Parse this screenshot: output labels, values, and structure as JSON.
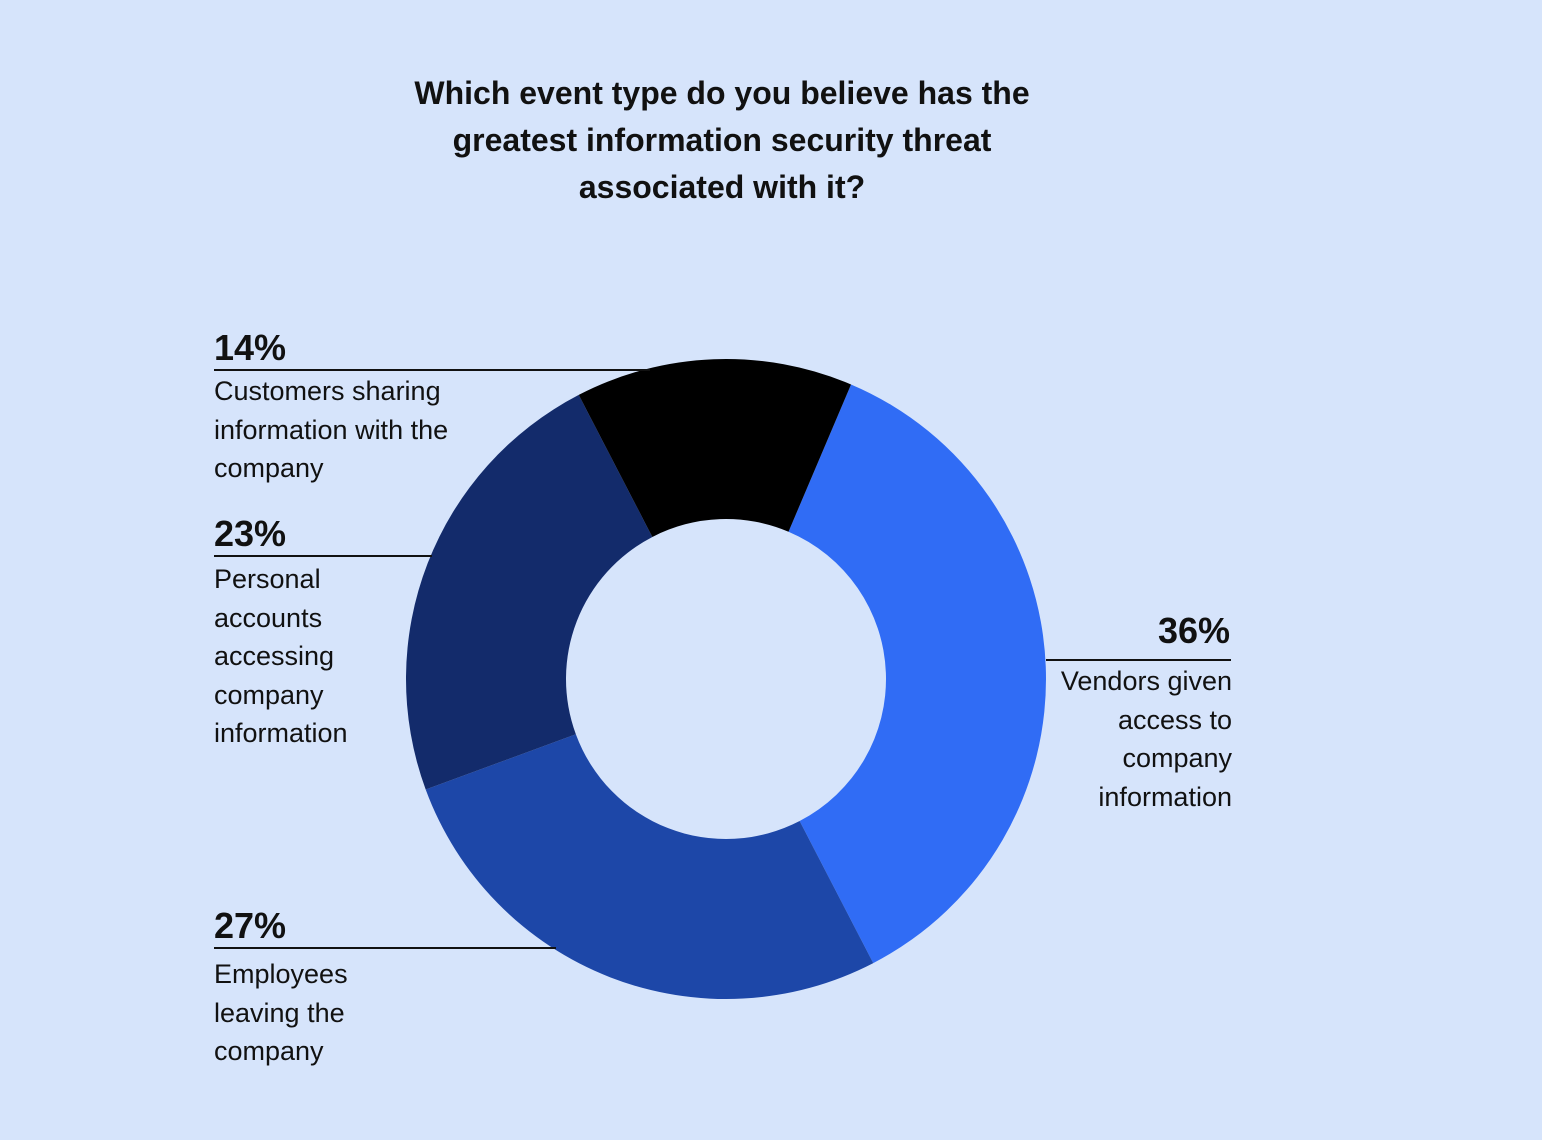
{
  "chart_data": {
    "type": "donut",
    "title": "Which event type do you believe has the greatest information security threat associated with it?",
    "categories": [
      "Vendors given access to company information",
      "Employees leaving the company",
      "Personal accounts accessing company information",
      "Customers sharing information with the company"
    ],
    "values": [
      36,
      27,
      23,
      14
    ],
    "value_labels": [
      "36%",
      "27%",
      "23%",
      "14%"
    ],
    "colors": [
      "#306cf5",
      "#1d47a8",
      "#132b6b",
      "#000000"
    ]
  }
}
